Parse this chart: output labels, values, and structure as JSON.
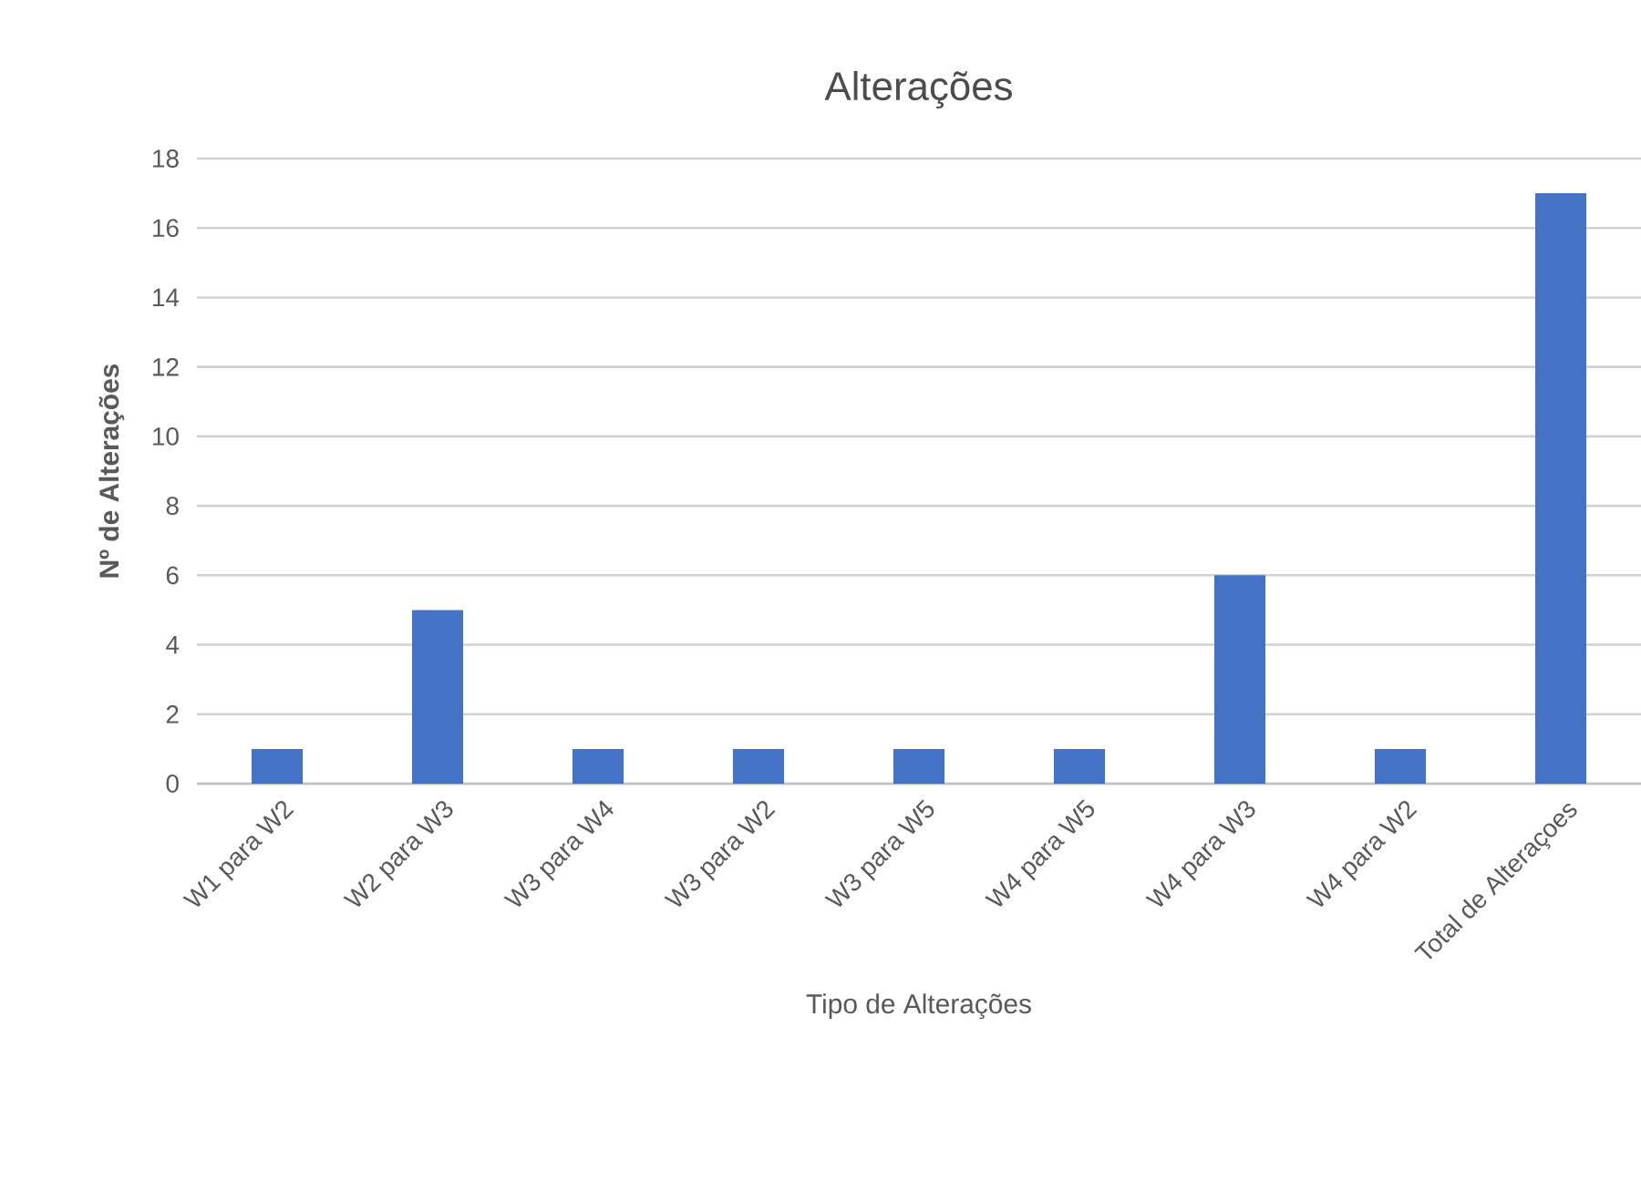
{
  "chart_data": {
    "type": "bar",
    "title": "Alterações",
    "xlabel": "Tipo de Alterações",
    "ylabel": "Nº de Alterações",
    "categories": [
      "W1 para W2",
      "W2 para W3",
      "W3 para W4",
      "W3 para W2",
      "W3 para W5",
      "W4 para W5",
      "W4 para W3",
      "W4 para W2",
      "Total de Alteraçoes"
    ],
    "values": [
      1,
      5,
      1,
      1,
      1,
      1,
      6,
      1,
      17
    ],
    "color": "#4472c4",
    "ylim": [
      0,
      18
    ],
    "yticks": [
      0,
      2,
      4,
      6,
      8,
      10,
      12,
      14,
      16,
      18
    ],
    "grid": "y"
  }
}
